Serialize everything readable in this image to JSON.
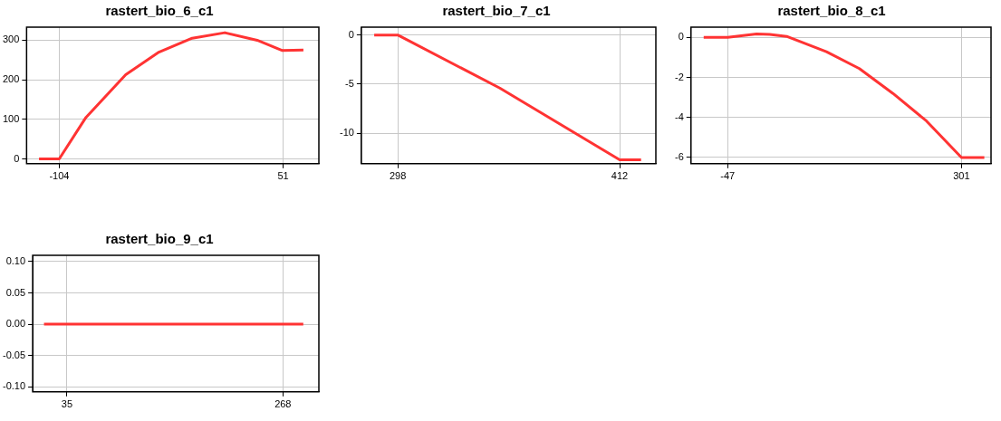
{
  "chart_data": [
    {
      "type": "line",
      "title": "rastert_bio_6_c1",
      "x": [
        -118,
        -104,
        -85.5,
        -58,
        -35,
        -12,
        10.6,
        33,
        50.5,
        65
      ],
      "values": [
        0,
        0,
        105,
        213,
        270,
        305,
        319,
        300,
        274,
        275
      ],
      "color": "#ff3333",
      "xlim": [
        -126.6,
        75.7
      ],
      "xticks": [
        -104,
        51
      ],
      "ylim": [
        -12,
        333
      ],
      "yticks": [
        0,
        100,
        200,
        300
      ],
      "grid": true,
      "marker": "none"
    },
    {
      "type": "line",
      "title": "rastert_bio_7_c1",
      "x": [
        285.9,
        298,
        350.4,
        412,
        423
      ],
      "values": [
        0,
        0,
        -5.4,
        -12.7,
        -12.7
      ],
      "color": "#ff3333",
      "xlim": [
        279.3,
        430.6
      ],
      "xticks": [
        298,
        412
      ],
      "ylim": [
        -13.1,
        0.8
      ],
      "yticks": [
        -10,
        -5,
        0
      ],
      "grid": true,
      "marker": "none"
    },
    {
      "type": "line",
      "title": "rastert_bio_8_c1",
      "x": [
        -82.7,
        -47,
        -4,
        15.6,
        40.7,
        100,
        149,
        199,
        249,
        301,
        335
      ],
      "values": [
        0,
        0,
        0.17,
        0.15,
        0.05,
        -0.72,
        -1.56,
        -2.8,
        -4.18,
        -6,
        -6
      ],
      "color": "#ff3333",
      "xlim": [
        -101.6,
        345
      ],
      "xticks": [
        -47,
        301
      ],
      "ylim": [
        -6.31,
        0.51
      ],
      "yticks": [
        -6,
        -4,
        -2,
        0
      ],
      "grid": true,
      "marker": "none"
    },
    {
      "type": "line",
      "title": "rastert_bio_9_c1",
      "x": [
        10.2,
        290
      ],
      "values": [
        0,
        0
      ],
      "color": "#ff3333",
      "xlim": [
        -2,
        306.8
      ],
      "xticks": [
        35,
        268
      ],
      "ylim": [
        -0.108,
        0.11
      ],
      "yticks": [
        {
          "value": -0.1,
          "label": "-0.10"
        },
        {
          "value": -0.05,
          "label": "-0.05"
        },
        {
          "value": 0,
          "label": "0.00"
        },
        {
          "value": 0.05,
          "label": "0.05"
        },
        {
          "value": 0.1,
          "label": "0.10"
        }
      ],
      "grid": true,
      "marker": "none"
    }
  ]
}
